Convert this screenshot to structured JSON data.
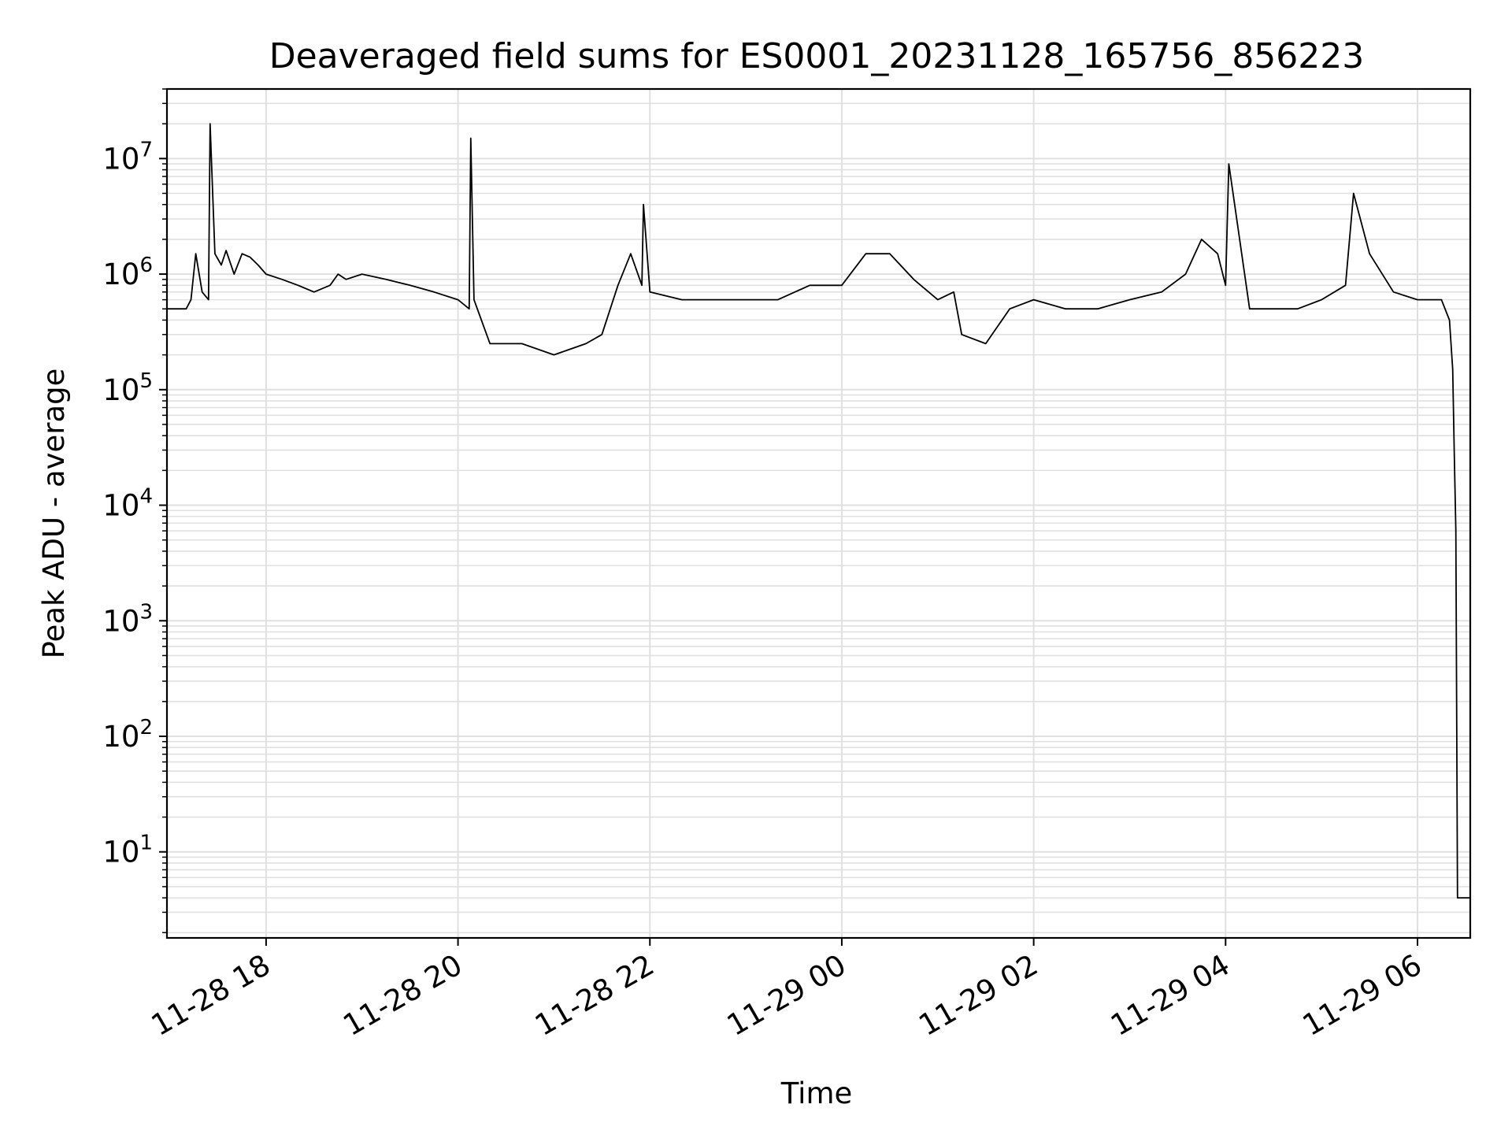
{
  "chart_data": {
    "type": "line",
    "title": "Deaveraged field sums for ES0001_20231128_165756_856223",
    "xlabel": "Time",
    "ylabel": "Peak ADU - average",
    "xscale": "time",
    "yscale": "log",
    "xlim": [
      "2023-11-28 16:58",
      "2023-11-29 06:33"
    ],
    "ylim": [
      1.8,
      40000000
    ],
    "grid": true,
    "x_ticks": [
      "11-28 18",
      "11-28 20",
      "11-28 22",
      "11-29 00",
      "11-29 02",
      "11-29 04",
      "11-29 06"
    ],
    "y_ticks": [
      {
        "base": "10",
        "exp": "1",
        "value": 10
      },
      {
        "base": "10",
        "exp": "2",
        "value": 100
      },
      {
        "base": "10",
        "exp": "3",
        "value": 1000
      },
      {
        "base": "10",
        "exp": "4",
        "value": 10000
      },
      {
        "base": "10",
        "exp": "5",
        "value": 100000
      },
      {
        "base": "10",
        "exp": "6",
        "value": 1000000
      },
      {
        "base": "10",
        "exp": "7",
        "value": 10000000
      }
    ],
    "line_color": "#000000",
    "grid_color": "#e0e0e0",
    "series": [
      {
        "name": "",
        "x": [
          "2023-11-28 16:58",
          "2023-11-28 17:05",
          "2023-11-28 17:10",
          "2023-11-28 17:13",
          "2023-11-28 17:16",
          "2023-11-28 17:20",
          "2023-11-28 17:24",
          "2023-11-28 17:25",
          "2023-11-28 17:28",
          "2023-11-28 17:32",
          "2023-11-28 17:35",
          "2023-11-28 17:40",
          "2023-11-28 17:45",
          "2023-11-28 17:50",
          "2023-11-28 17:55",
          "2023-11-28 18:00",
          "2023-11-28 18:10",
          "2023-11-28 18:20",
          "2023-11-28 18:30",
          "2023-11-28 18:40",
          "2023-11-28 18:45",
          "2023-11-28 18:50",
          "2023-11-28 19:00",
          "2023-11-28 19:15",
          "2023-11-28 19:30",
          "2023-11-28 19:45",
          "2023-11-28 20:00",
          "2023-11-28 20:07",
          "2023-11-28 20:08",
          "2023-11-28 20:10",
          "2023-11-28 20:20",
          "2023-11-28 20:40",
          "2023-11-28 21:00",
          "2023-11-28 21:20",
          "2023-11-28 21:30",
          "2023-11-28 21:40",
          "2023-11-28 21:48",
          "2023-11-28 21:55",
          "2023-11-28 21:56",
          "2023-11-28 22:00",
          "2023-11-28 22:20",
          "2023-11-28 22:40",
          "2023-11-28 23:00",
          "2023-11-28 23:20",
          "2023-11-28 23:40",
          "2023-11-29 00:00",
          "2023-11-29 00:15",
          "2023-11-29 00:30",
          "2023-11-29 00:45",
          "2023-11-29 01:00",
          "2023-11-29 01:10",
          "2023-11-29 01:15",
          "2023-11-29 01:30",
          "2023-11-29 01:45",
          "2023-11-29 02:00",
          "2023-11-29 02:20",
          "2023-11-29 02:40",
          "2023-11-29 03:00",
          "2023-11-29 03:20",
          "2023-11-29 03:35",
          "2023-11-29 03:45",
          "2023-11-29 03:55",
          "2023-11-29 04:00",
          "2023-11-29 04:02",
          "2023-11-29 04:15",
          "2023-11-29 04:30",
          "2023-11-29 04:45",
          "2023-11-29 05:00",
          "2023-11-29 05:15",
          "2023-11-29 05:20",
          "2023-11-29 05:30",
          "2023-11-29 05:45",
          "2023-11-29 06:00",
          "2023-11-29 06:15",
          "2023-11-29 06:20",
          "2023-11-29 06:22",
          "2023-11-29 06:23",
          "2023-11-29 06:24",
          "2023-11-29 06:25",
          "2023-11-29 06:26",
          "2023-11-29 06:33"
        ],
        "y": [
          500000,
          500000,
          500000,
          600000,
          1500000,
          700000,
          600000,
          20000000,
          1500000,
          1200000,
          1600000,
          1000000,
          1500000,
          1400000,
          1200000,
          1000000,
          900000,
          800000,
          700000,
          800000,
          1000000,
          900000,
          1000000,
          900000,
          800000,
          700000,
          600000,
          500000,
          15000000,
          600000,
          250000,
          250000,
          200000,
          250000,
          300000,
          800000,
          1500000,
          800000,
          4000000,
          700000,
          600000,
          600000,
          600000,
          600000,
          800000,
          800000,
          1500000,
          1500000,
          900000,
          600000,
          700000,
          300000,
          250000,
          500000,
          600000,
          500000,
          500000,
          600000,
          700000,
          1000000,
          2000000,
          1500000,
          800000,
          9000000,
          500000,
          500000,
          500000,
          600000,
          800000,
          5000000,
          1500000,
          700000,
          600000,
          600000,
          400000,
          150000,
          28000,
          6000,
          4,
          4,
          4
        ]
      }
    ]
  }
}
